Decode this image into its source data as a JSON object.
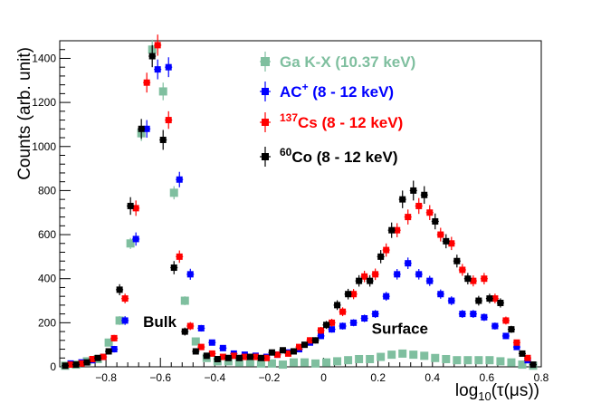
{
  "chart_data": {
    "type": "scatter",
    "title": "",
    "xlabel_prefix": "log",
    "xlabel_sub": "10",
    "xlabel_suffix": "(τ(μs))",
    "ylabel": "Counts (arb. unit)",
    "xlim": [
      -0.97,
      0.8
    ],
    "ylim": [
      0,
      1480
    ],
    "xticks": [
      -0.8,
      -0.6,
      -0.4,
      -0.2,
      0,
      0.2,
      0.4,
      0.6,
      0.8
    ],
    "yticks": [
      0,
      200,
      400,
      600,
      800,
      1000,
      1200,
      1400
    ],
    "legend_position": "top-right",
    "series": [
      {
        "name": "Ga K-X (10.37 keV)",
        "legend": {
          "pre": "",
          "sup": "",
          "main": "Ga K-X (10.37 keV)"
        },
        "color": "#7fbf9f",
        "marker": "square",
        "x": [
          -0.95,
          -0.91,
          -0.87,
          -0.83,
          -0.79,
          -0.75,
          -0.71,
          -0.67,
          -0.63,
          -0.59,
          -0.55,
          -0.51,
          -0.47,
          -0.43,
          -0.39,
          -0.35,
          -0.31,
          -0.27,
          -0.23,
          -0.19,
          -0.15,
          -0.11,
          -0.07,
          -0.03,
          0.01,
          0.05,
          0.09,
          0.13,
          0.17,
          0.21,
          0.25,
          0.29,
          0.33,
          0.37,
          0.41,
          0.45,
          0.49,
          0.53,
          0.57,
          0.61,
          0.65,
          0.69,
          0.73,
          0.77
        ],
        "y": [
          5,
          10,
          25,
          35,
          110,
          210,
          560,
          1060,
          1440,
          1250,
          790,
          300,
          115,
          40,
          25,
          25,
          20,
          20,
          15,
          15,
          10,
          20,
          20,
          15,
          20,
          25,
          30,
          35,
          35,
          45,
          55,
          60,
          55,
          50,
          40,
          35,
          30,
          30,
          30,
          30,
          25,
          20,
          10,
          5
        ],
        "err": [
          5,
          5,
          8,
          8,
          15,
          20,
          25,
          35,
          45,
          40,
          30,
          20,
          12,
          8,
          6,
          6,
          5,
          5,
          5,
          5,
          5,
          5,
          5,
          5,
          5,
          6,
          6,
          6,
          6,
          7,
          8,
          8,
          8,
          7,
          7,
          6,
          6,
          6,
          6,
          6,
          6,
          5,
          5,
          5
        ]
      },
      {
        "name": "AC+ (8 - 12 keV)",
        "legend": {
          "pre": "",
          "sup": "+",
          "main": "AC",
          "post": " (8 - 12 keV)"
        },
        "color": "#0000ff",
        "marker": "square",
        "x": [
          -0.93,
          -0.89,
          -0.85,
          -0.81,
          -0.77,
          -0.73,
          -0.69,
          -0.65,
          -0.61,
          -0.57,
          -0.53,
          -0.49,
          -0.45,
          -0.41,
          -0.37,
          -0.33,
          -0.29,
          -0.25,
          -0.21,
          -0.17,
          -0.13,
          -0.09,
          -0.05,
          -0.01,
          0.03,
          0.07,
          0.11,
          0.15,
          0.19,
          0.23,
          0.27,
          0.31,
          0.35,
          0.39,
          0.43,
          0.47,
          0.51,
          0.55,
          0.59,
          0.63,
          0.67,
          0.71,
          0.75
        ],
        "y": [
          15,
          20,
          30,
          45,
          80,
          210,
          580,
          1080,
          1350,
          1360,
          850,
          420,
          175,
          110,
          85,
          60,
          55,
          50,
          45,
          55,
          65,
          80,
          110,
          140,
          170,
          185,
          200,
          220,
          240,
          320,
          420,
          470,
          420,
          390,
          330,
          300,
          240,
          240,
          225,
          185,
          140,
          90,
          30
        ],
        "err": [
          5,
          6,
          8,
          10,
          15,
          20,
          30,
          40,
          45,
          45,
          35,
          25,
          15,
          12,
          10,
          9,
          8,
          8,
          8,
          8,
          9,
          10,
          12,
          14,
          15,
          16,
          16,
          17,
          18,
          20,
          24,
          26,
          24,
          23,
          21,
          20,
          18,
          18,
          17,
          16,
          14,
          12,
          7
        ]
      },
      {
        "name": "137Cs (8 - 12 keV)",
        "legend": {
          "pre": "137",
          "sup": "",
          "main": "Cs",
          "post": " (8 - 12 keV)"
        },
        "color": "#ff0000",
        "marker": "square",
        "x": [
          -0.93,
          -0.89,
          -0.85,
          -0.81,
          -0.77,
          -0.73,
          -0.69,
          -0.65,
          -0.61,
          -0.57,
          -0.53,
          -0.49,
          -0.45,
          -0.41,
          -0.37,
          -0.33,
          -0.29,
          -0.25,
          -0.21,
          -0.17,
          -0.13,
          -0.09,
          -0.05,
          -0.01,
          0.03,
          0.07,
          0.11,
          0.15,
          0.19,
          0.23,
          0.27,
          0.31,
          0.35,
          0.39,
          0.43,
          0.47,
          0.51,
          0.55,
          0.59,
          0.63,
          0.67,
          0.71,
          0.75
        ],
        "y": [
          10,
          15,
          35,
          45,
          130,
          310,
          720,
          1290,
          1460,
          1120,
          500,
          185,
          90,
          60,
          45,
          50,
          45,
          45,
          40,
          55,
          60,
          90,
          120,
          165,
          200,
          250,
          330,
          410,
          420,
          530,
          620,
          680,
          730,
          700,
          600,
          560,
          440,
          390,
          400,
          310,
          210,
          110,
          40
        ],
        "err": [
          5,
          6,
          8,
          10,
          15,
          22,
          35,
          45,
          48,
          40,
          28,
          18,
          12,
          10,
          9,
          9,
          9,
          9,
          8,
          9,
          10,
          12,
          14,
          16,
          18,
          20,
          23,
          26,
          26,
          30,
          32,
          34,
          36,
          34,
          31,
          30,
          27,
          25,
          26,
          22,
          18,
          13,
          8
        ]
      },
      {
        "name": "60Co (8 - 12 keV)",
        "legend": {
          "pre": "60",
          "sup": "",
          "main": "Co",
          "post": " (8 - 12 keV)"
        },
        "color": "#000000",
        "marker": "square",
        "x": [
          -0.95,
          -0.91,
          -0.87,
          -0.83,
          -0.79,
          -0.75,
          -0.71,
          -0.67,
          -0.63,
          -0.59,
          -0.55,
          -0.51,
          -0.47,
          -0.43,
          -0.39,
          -0.35,
          -0.31,
          -0.27,
          -0.23,
          -0.19,
          -0.15,
          -0.11,
          -0.07,
          -0.03,
          0.01,
          0.05,
          0.09,
          0.13,
          0.17,
          0.21,
          0.25,
          0.29,
          0.33,
          0.37,
          0.41,
          0.45,
          0.49,
          0.53,
          0.57,
          0.61,
          0.65,
          0.69,
          0.73,
          0.77
        ],
        "y": [
          5,
          10,
          20,
          40,
          70,
          350,
          730,
          1080,
          1410,
          1030,
          450,
          160,
          70,
          50,
          35,
          40,
          40,
          45,
          40,
          65,
          75,
          70,
          100,
          120,
          190,
          280,
          330,
          390,
          390,
          500,
          620,
          760,
          800,
          780,
          660,
          570,
          480,
          400,
          300,
          310,
          290,
          170,
          60,
          10
        ],
        "err": [
          5,
          6,
          8,
          10,
          14,
          25,
          40,
          45,
          50,
          45,
          30,
          18,
          12,
          10,
          9,
          9,
          9,
          9,
          9,
          10,
          11,
          11,
          13,
          14,
          18,
          22,
          24,
          26,
          26,
          30,
          35,
          40,
          45,
          40,
          36,
          32,
          29,
          26,
          22,
          22,
          21,
          16,
          10,
          6
        ]
      }
    ],
    "annotations": [
      {
        "text": "Bulk",
        "x": -0.71,
        "y": 205
      },
      {
        "text": "Surface",
        "x": 0.13,
        "y": 175
      }
    ]
  }
}
